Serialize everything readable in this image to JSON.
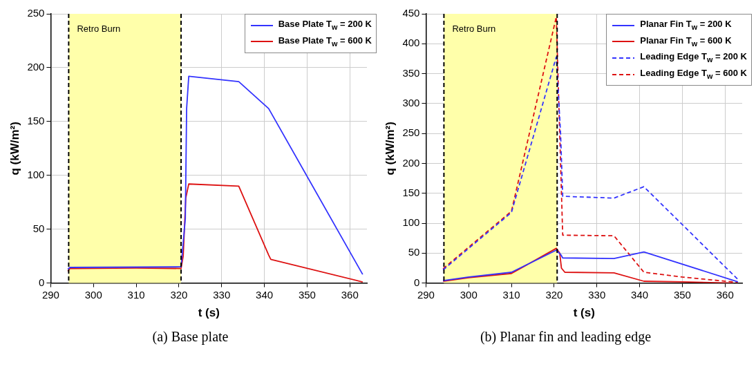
{
  "chart_data": [
    {
      "type": "line",
      "xlabel": "t (s)",
      "ylabel": "q (kW/m²)",
      "xlim": [
        290,
        364
      ],
      "ylim": [
        0,
        250
      ],
      "xticks": [
        290,
        300,
        310,
        320,
        330,
        340,
        350,
        360
      ],
      "yticks": [
        0,
        50,
        100,
        150,
        200,
        250
      ],
      "grid": true,
      "legend": "top right",
      "line_style": "solid",
      "marker": "none",
      "series": [
        {
          "name": "Base Plate T$_{w}$ = 200 K",
          "color": "#3333ff",
          "x": [
            294,
            294.5,
            320.5,
            321.5,
            321.8,
            322.3,
            334,
            341,
            363
          ],
          "values": [
            13,
            14.5,
            15,
            60,
            162,
            192,
            187,
            162,
            8
          ]
        },
        {
          "name": "Base Plate T$_{w}$ = 600 K",
          "color": "#dd1111",
          "x": [
            294,
            294.5,
            310,
            320.5,
            321,
            321.6,
            322.3,
            334,
            341,
            341.5,
            363
          ],
          "values": [
            11,
            13.5,
            14,
            13.5,
            25,
            79,
            92,
            90,
            26,
            22,
            1
          ]
        }
      ],
      "bands": [
        {
          "axis": "x",
          "from": 294.2,
          "to": 320.5,
          "label": "Retro Burn",
          "color": "#ffffaa"
        }
      ],
      "ref_lines": [
        {
          "axis": "x",
          "value": 294.2,
          "color": "#000000",
          "line_style": "dashed"
        },
        {
          "axis": "x",
          "value": 320.5,
          "color": "#000000",
          "line_style": "dashed"
        }
      ],
      "annotations": [
        "(a) Base plate"
      ]
    },
    {
      "type": "line",
      "xlabel": "t (s)",
      "ylabel": "q (kW/m²)",
      "xlim": [
        290,
        364
      ],
      "ylim": [
        0,
        450
      ],
      "xticks": [
        290,
        300,
        310,
        320,
        330,
        340,
        350,
        360
      ],
      "yticks": [
        0,
        50,
        100,
        150,
        200,
        250,
        300,
        350,
        400,
        450
      ],
      "grid": true,
      "legend": "top right",
      "marker": "none",
      "series": [
        {
          "name": "Planar Fin T$_{w}$ = 200 K",
          "color": "#3333ff",
          "line_style": "solid",
          "x": [
            294,
            300,
            310,
            320.5,
            321.5,
            322,
            334,
            341,
            363
          ],
          "values": [
            4,
            10,
            18,
            55,
            48,
            42,
            41,
            52,
            2
          ]
        },
        {
          "name": "Planar Fin T$_{w}$ = 600 K",
          "color": "#dd1111",
          "line_style": "solid",
          "x": [
            294,
            300,
            310,
            320.5,
            321.3,
            321.7,
            322.5,
            334,
            341,
            350,
            362
          ],
          "values": [
            3,
            9,
            16,
            58,
            50,
            25,
            18,
            17,
            3,
            2,
            0
          ]
        },
        {
          "name": "Leading Edge T$_{w}$ = 200 K",
          "color": "#3333ff",
          "line_style": "dashed",
          "x": [
            294,
            310,
            320.5,
            321.5,
            322,
            334,
            341,
            363
          ],
          "values": [
            22,
            118,
            378,
            250,
            145,
            142,
            161,
            6
          ]
        },
        {
          "name": "Leading Edge T$_{w}$ = 600 K",
          "color": "#dd1111",
          "line_style": "dashed",
          "x": [
            294,
            310,
            320.5,
            321.5,
            322,
            334,
            341,
            350,
            363
          ],
          "values": [
            24,
            120,
            445,
            200,
            80,
            79,
            18,
            10,
            1
          ]
        }
      ],
      "bands": [
        {
          "axis": "x",
          "from": 294.2,
          "to": 320.7,
          "label": "Retro Burn",
          "color": "#ffffaa"
        }
      ],
      "ref_lines": [
        {
          "axis": "x",
          "value": 294.2,
          "color": "#000000",
          "line_style": "dashed"
        },
        {
          "axis": "x",
          "value": 320.7,
          "color": "#000000",
          "line_style": "dashed"
        }
      ],
      "annotations": [
        "(b) Planar fin and leading edge"
      ]
    }
  ]
}
